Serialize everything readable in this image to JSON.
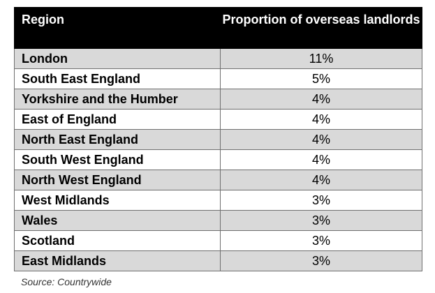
{
  "chart_data": {
    "type": "table",
    "columns": [
      "Region",
      "Proportion of overseas landlords"
    ],
    "rows": [
      {
        "region": "London",
        "value": "11%"
      },
      {
        "region": "South East England",
        "value": "5%"
      },
      {
        "region": "Yorkshire and the Humber",
        "value": "4%"
      },
      {
        "region": "East of England",
        "value": "4%"
      },
      {
        "region": "North East England",
        "value": "4%"
      },
      {
        "region": "South West England",
        "value": "4%"
      },
      {
        "region": "North West England",
        "value": "4%"
      },
      {
        "region": "West Midlands",
        "value": "3%"
      },
      {
        "region": "Wales",
        "value": "3%"
      },
      {
        "region": "Scotland",
        "value": "3%"
      },
      {
        "region": "East Midlands",
        "value": "3%"
      }
    ],
    "source": "Source: Countrywide"
  },
  "colors": {
    "header_bg": "#000000",
    "header_text": "#ffffff",
    "shaded_row": "#d9d9d9",
    "plain_row": "#ffffff",
    "border": "#6f6f6f"
  }
}
